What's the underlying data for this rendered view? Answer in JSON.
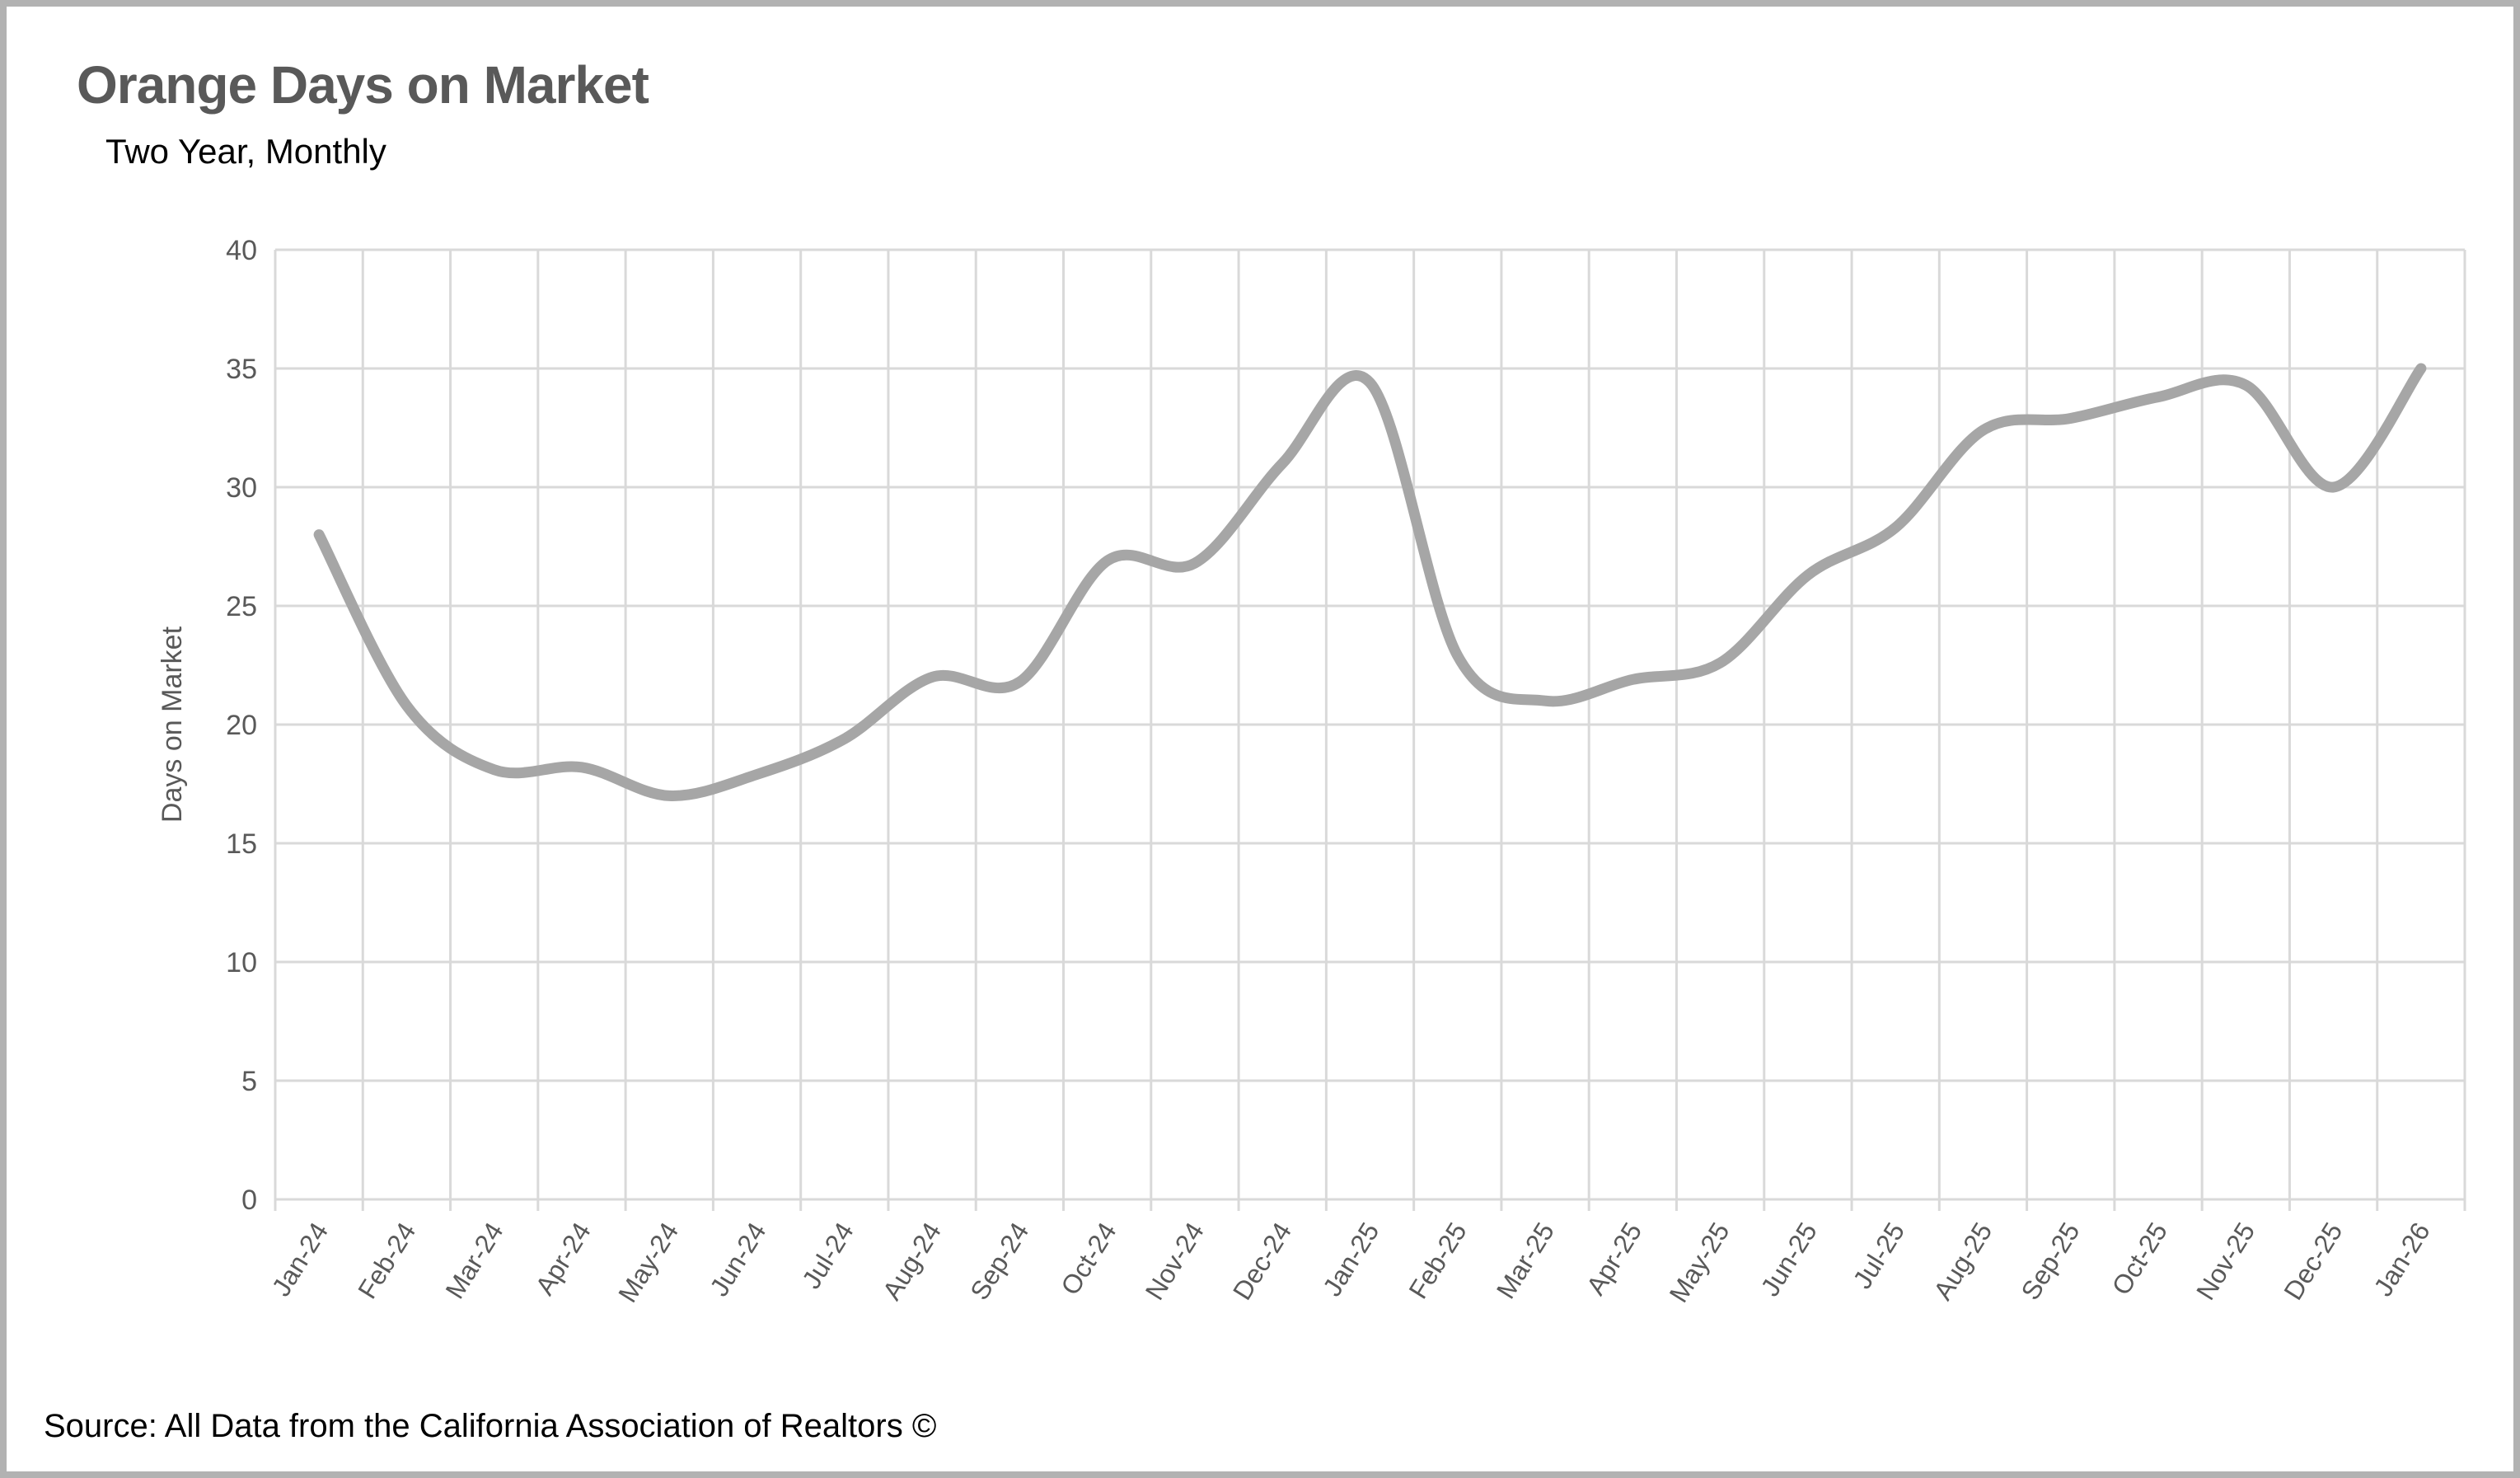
{
  "header": {
    "title": "Orange Days on Market",
    "subtitle": "Two Year, Monthly"
  },
  "footer": {
    "source": "Source: All Data from the California Association of Realtors ©"
  },
  "colors": {
    "line": "#a6a6a6",
    "gridline": "#d9d9d9",
    "axis_text": "#595959",
    "title_text": "#595959",
    "body_text": "#000000",
    "frame": "#b2b2b2",
    "background": "#ffffff"
  },
  "chart_data": {
    "type": "line",
    "title": "Orange Days on Market",
    "subtitle": "Two Year, Monthly",
    "xlabel": "",
    "ylabel": "Days on Market",
    "ylim": [
      0,
      40
    ],
    "yticks": [
      0,
      5,
      10,
      15,
      20,
      25,
      30,
      35,
      40
    ],
    "grid": true,
    "legend_position": "none",
    "smooth": true,
    "line_width": 13,
    "categories": [
      "Jan-24",
      "Feb-24",
      "Mar-24",
      "Apr-24",
      "May-24",
      "Jun-24",
      "Jul-24",
      "Aug-24",
      "Sep-24",
      "Oct-24",
      "Nov-24",
      "Dec-24",
      "Jan-25",
      "Feb-25",
      "Mar-25",
      "Apr-25",
      "May-25",
      "Jun-25",
      "Jul-25",
      "Aug-25",
      "Sep-25",
      "Oct-25",
      "Nov-25",
      "Dec-25",
      "Jan-26"
    ],
    "series": [
      {
        "name": "Days on Market",
        "values": [
          28,
          20.8,
          18.1,
          18.2,
          17,
          17.9,
          19.4,
          22,
          21.8,
          26.9,
          26.8,
          31,
          34.4,
          22.9,
          21,
          21.9,
          22.6,
          26.3,
          28.3,
          32.4,
          32.9,
          33.8,
          34.3,
          30,
          35
        ]
      }
    ]
  }
}
